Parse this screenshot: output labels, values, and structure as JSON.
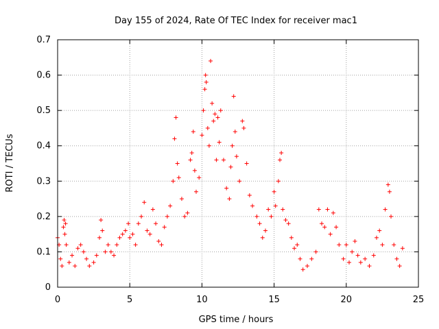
{
  "chart_data": {
    "type": "scatter",
    "title": "Day 155 of 2024, Rate Of TEC Index for receiver mac1",
    "xlabel": "GPS time / hours",
    "ylabel": "ROTI / TECUs",
    "xlim": [
      0,
      25
    ],
    "ylim": [
      0,
      0.7
    ],
    "x_ticks": [
      "0",
      "5",
      "10",
      "15",
      "20",
      "25"
    ],
    "y_ticks": [
      "0",
      "0.1",
      "0.2",
      "0.3",
      "0.4",
      "0.5",
      "0.6",
      "0.7"
    ],
    "grid": true,
    "marker": "plus",
    "color": "#ff0000",
    "points": [
      [
        0.0,
        0.14
      ],
      [
        0.1,
        0.12
      ],
      [
        0.2,
        0.08
      ],
      [
        0.3,
        0.06
      ],
      [
        0.4,
        0.17
      ],
      [
        0.45,
        0.19
      ],
      [
        0.5,
        0.15
      ],
      [
        0.55,
        0.18
      ],
      [
        0.6,
        0.12
      ],
      [
        0.8,
        0.07
      ],
      [
        1.0,
        0.09
      ],
      [
        1.2,
        0.06
      ],
      [
        1.4,
        0.11
      ],
      [
        1.6,
        0.12
      ],
      [
        1.8,
        0.1
      ],
      [
        2.0,
        0.08
      ],
      [
        2.2,
        0.06
      ],
      [
        2.5,
        0.07
      ],
      [
        2.7,
        0.09
      ],
      [
        2.9,
        0.14
      ],
      [
        3.0,
        0.19
      ],
      [
        3.1,
        0.16
      ],
      [
        3.3,
        0.1
      ],
      [
        3.5,
        0.12
      ],
      [
        3.7,
        0.1
      ],
      [
        3.9,
        0.09
      ],
      [
        4.1,
        0.12
      ],
      [
        4.3,
        0.14
      ],
      [
        4.5,
        0.15
      ],
      [
        4.7,
        0.16
      ],
      [
        4.9,
        0.18
      ],
      [
        5.0,
        0.14
      ],
      [
        5.2,
        0.15
      ],
      [
        5.4,
        0.12
      ],
      [
        5.6,
        0.18
      ],
      [
        5.8,
        0.2
      ],
      [
        6.0,
        0.24
      ],
      [
        6.2,
        0.16
      ],
      [
        6.4,
        0.15
      ],
      [
        6.6,
        0.22
      ],
      [
        6.8,
        0.18
      ],
      [
        7.0,
        0.13
      ],
      [
        7.2,
        0.12
      ],
      [
        7.4,
        0.17
      ],
      [
        7.6,
        0.2
      ],
      [
        7.8,
        0.23
      ],
      [
        8.0,
        0.3
      ],
      [
        8.1,
        0.42
      ],
      [
        8.2,
        0.48
      ],
      [
        8.3,
        0.35
      ],
      [
        8.4,
        0.31
      ],
      [
        8.6,
        0.25
      ],
      [
        8.8,
        0.2
      ],
      [
        9.0,
        0.21
      ],
      [
        9.2,
        0.36
      ],
      [
        9.3,
        0.38
      ],
      [
        9.4,
        0.44
      ],
      [
        9.5,
        0.33
      ],
      [
        9.6,
        0.27
      ],
      [
        9.8,
        0.31
      ],
      [
        10.0,
        0.43
      ],
      [
        10.1,
        0.5
      ],
      [
        10.2,
        0.56
      ],
      [
        10.25,
        0.6
      ],
      [
        10.3,
        0.58
      ],
      [
        10.4,
        0.45
      ],
      [
        10.5,
        0.4
      ],
      [
        10.6,
        0.64
      ],
      [
        10.7,
        0.52
      ],
      [
        10.8,
        0.47
      ],
      [
        10.9,
        0.49
      ],
      [
        11.0,
        0.36
      ],
      [
        11.1,
        0.48
      ],
      [
        11.2,
        0.41
      ],
      [
        11.3,
        0.5
      ],
      [
        11.5,
        0.36
      ],
      [
        11.7,
        0.28
      ],
      [
        11.9,
        0.25
      ],
      [
        12.0,
        0.34
      ],
      [
        12.1,
        0.4
      ],
      [
        12.2,
        0.54
      ],
      [
        12.3,
        0.44
      ],
      [
        12.4,
        0.37
      ],
      [
        12.6,
        0.3
      ],
      [
        12.8,
        0.47
      ],
      [
        12.9,
        0.45
      ],
      [
        13.1,
        0.35
      ],
      [
        13.3,
        0.26
      ],
      [
        13.5,
        0.23
      ],
      [
        13.8,
        0.2
      ],
      [
        14.0,
        0.18
      ],
      [
        14.2,
        0.14
      ],
      [
        14.4,
        0.16
      ],
      [
        14.6,
        0.22
      ],
      [
        14.8,
        0.2
      ],
      [
        15.0,
        0.27
      ],
      [
        15.1,
        0.23
      ],
      [
        15.3,
        0.3
      ],
      [
        15.4,
        0.36
      ],
      [
        15.5,
        0.38
      ],
      [
        15.6,
        0.22
      ],
      [
        15.8,
        0.19
      ],
      [
        16.0,
        0.18
      ],
      [
        16.2,
        0.14
      ],
      [
        16.4,
        0.11
      ],
      [
        16.6,
        0.12
      ],
      [
        16.8,
        0.08
      ],
      [
        17.0,
        0.05
      ],
      [
        17.3,
        0.06
      ],
      [
        17.6,
        0.08
      ],
      [
        17.9,
        0.1
      ],
      [
        18.1,
        0.22
      ],
      [
        18.3,
        0.18
      ],
      [
        18.5,
        0.17
      ],
      [
        18.7,
        0.22
      ],
      [
        18.9,
        0.15
      ],
      [
        19.1,
        0.21
      ],
      [
        19.3,
        0.17
      ],
      [
        19.5,
        0.12
      ],
      [
        19.8,
        0.08
      ],
      [
        20.0,
        0.12
      ],
      [
        20.2,
        0.07
      ],
      [
        20.4,
        0.1
      ],
      [
        20.6,
        0.13
      ],
      [
        20.8,
        0.09
      ],
      [
        21.0,
        0.07
      ],
      [
        21.3,
        0.08
      ],
      [
        21.6,
        0.06
      ],
      [
        21.9,
        0.09
      ],
      [
        22.1,
        0.14
      ],
      [
        22.3,
        0.16
      ],
      [
        22.5,
        0.12
      ],
      [
        22.7,
        0.22
      ],
      [
        22.9,
        0.29
      ],
      [
        23.0,
        0.27
      ],
      [
        23.1,
        0.2
      ],
      [
        23.3,
        0.12
      ],
      [
        23.5,
        0.08
      ],
      [
        23.7,
        0.06
      ],
      [
        23.9,
        0.11
      ]
    ]
  }
}
